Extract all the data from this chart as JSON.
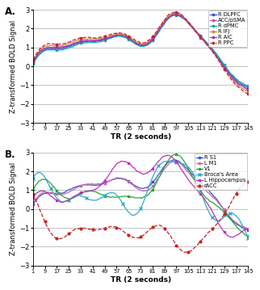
{
  "title_A": "A.",
  "title_B": "B.",
  "xlabel": "TR (2 seconds)",
  "ylabel": "Z-transformed BOLD Signal",
  "ylim": [
    -3,
    3
  ],
  "yticks": [
    -3,
    -2,
    -1,
    0,
    1,
    2,
    3
  ],
  "xticks": [
    1,
    9,
    17,
    25,
    33,
    41,
    49,
    57,
    65,
    73,
    81,
    89,
    97,
    105,
    113,
    121,
    129,
    137,
    145
  ],
  "panel_A_labels": [
    "R DLPFC",
    "ACC/pSMA",
    "R dPMC",
    "R IFJ",
    "R AIC",
    "R PPC"
  ],
  "panel_A_colors": [
    "#3355cc",
    "#bb55bb",
    "#11aaaa",
    "#cc8833",
    "#9933bb",
    "#cc2222"
  ],
  "panel_B_labels": [
    "R S1",
    "L M1",
    "V1",
    "Broca's Area",
    "L Hippocampus",
    "rACC"
  ],
  "panel_B_colors": [
    "#3355cc",
    "#cc66aa",
    "#22aa33",
    "#33aacc",
    "#bb33bb",
    "#cc2222"
  ],
  "figsize": [
    3.22,
    3.59
  ],
  "dpi": 100
}
